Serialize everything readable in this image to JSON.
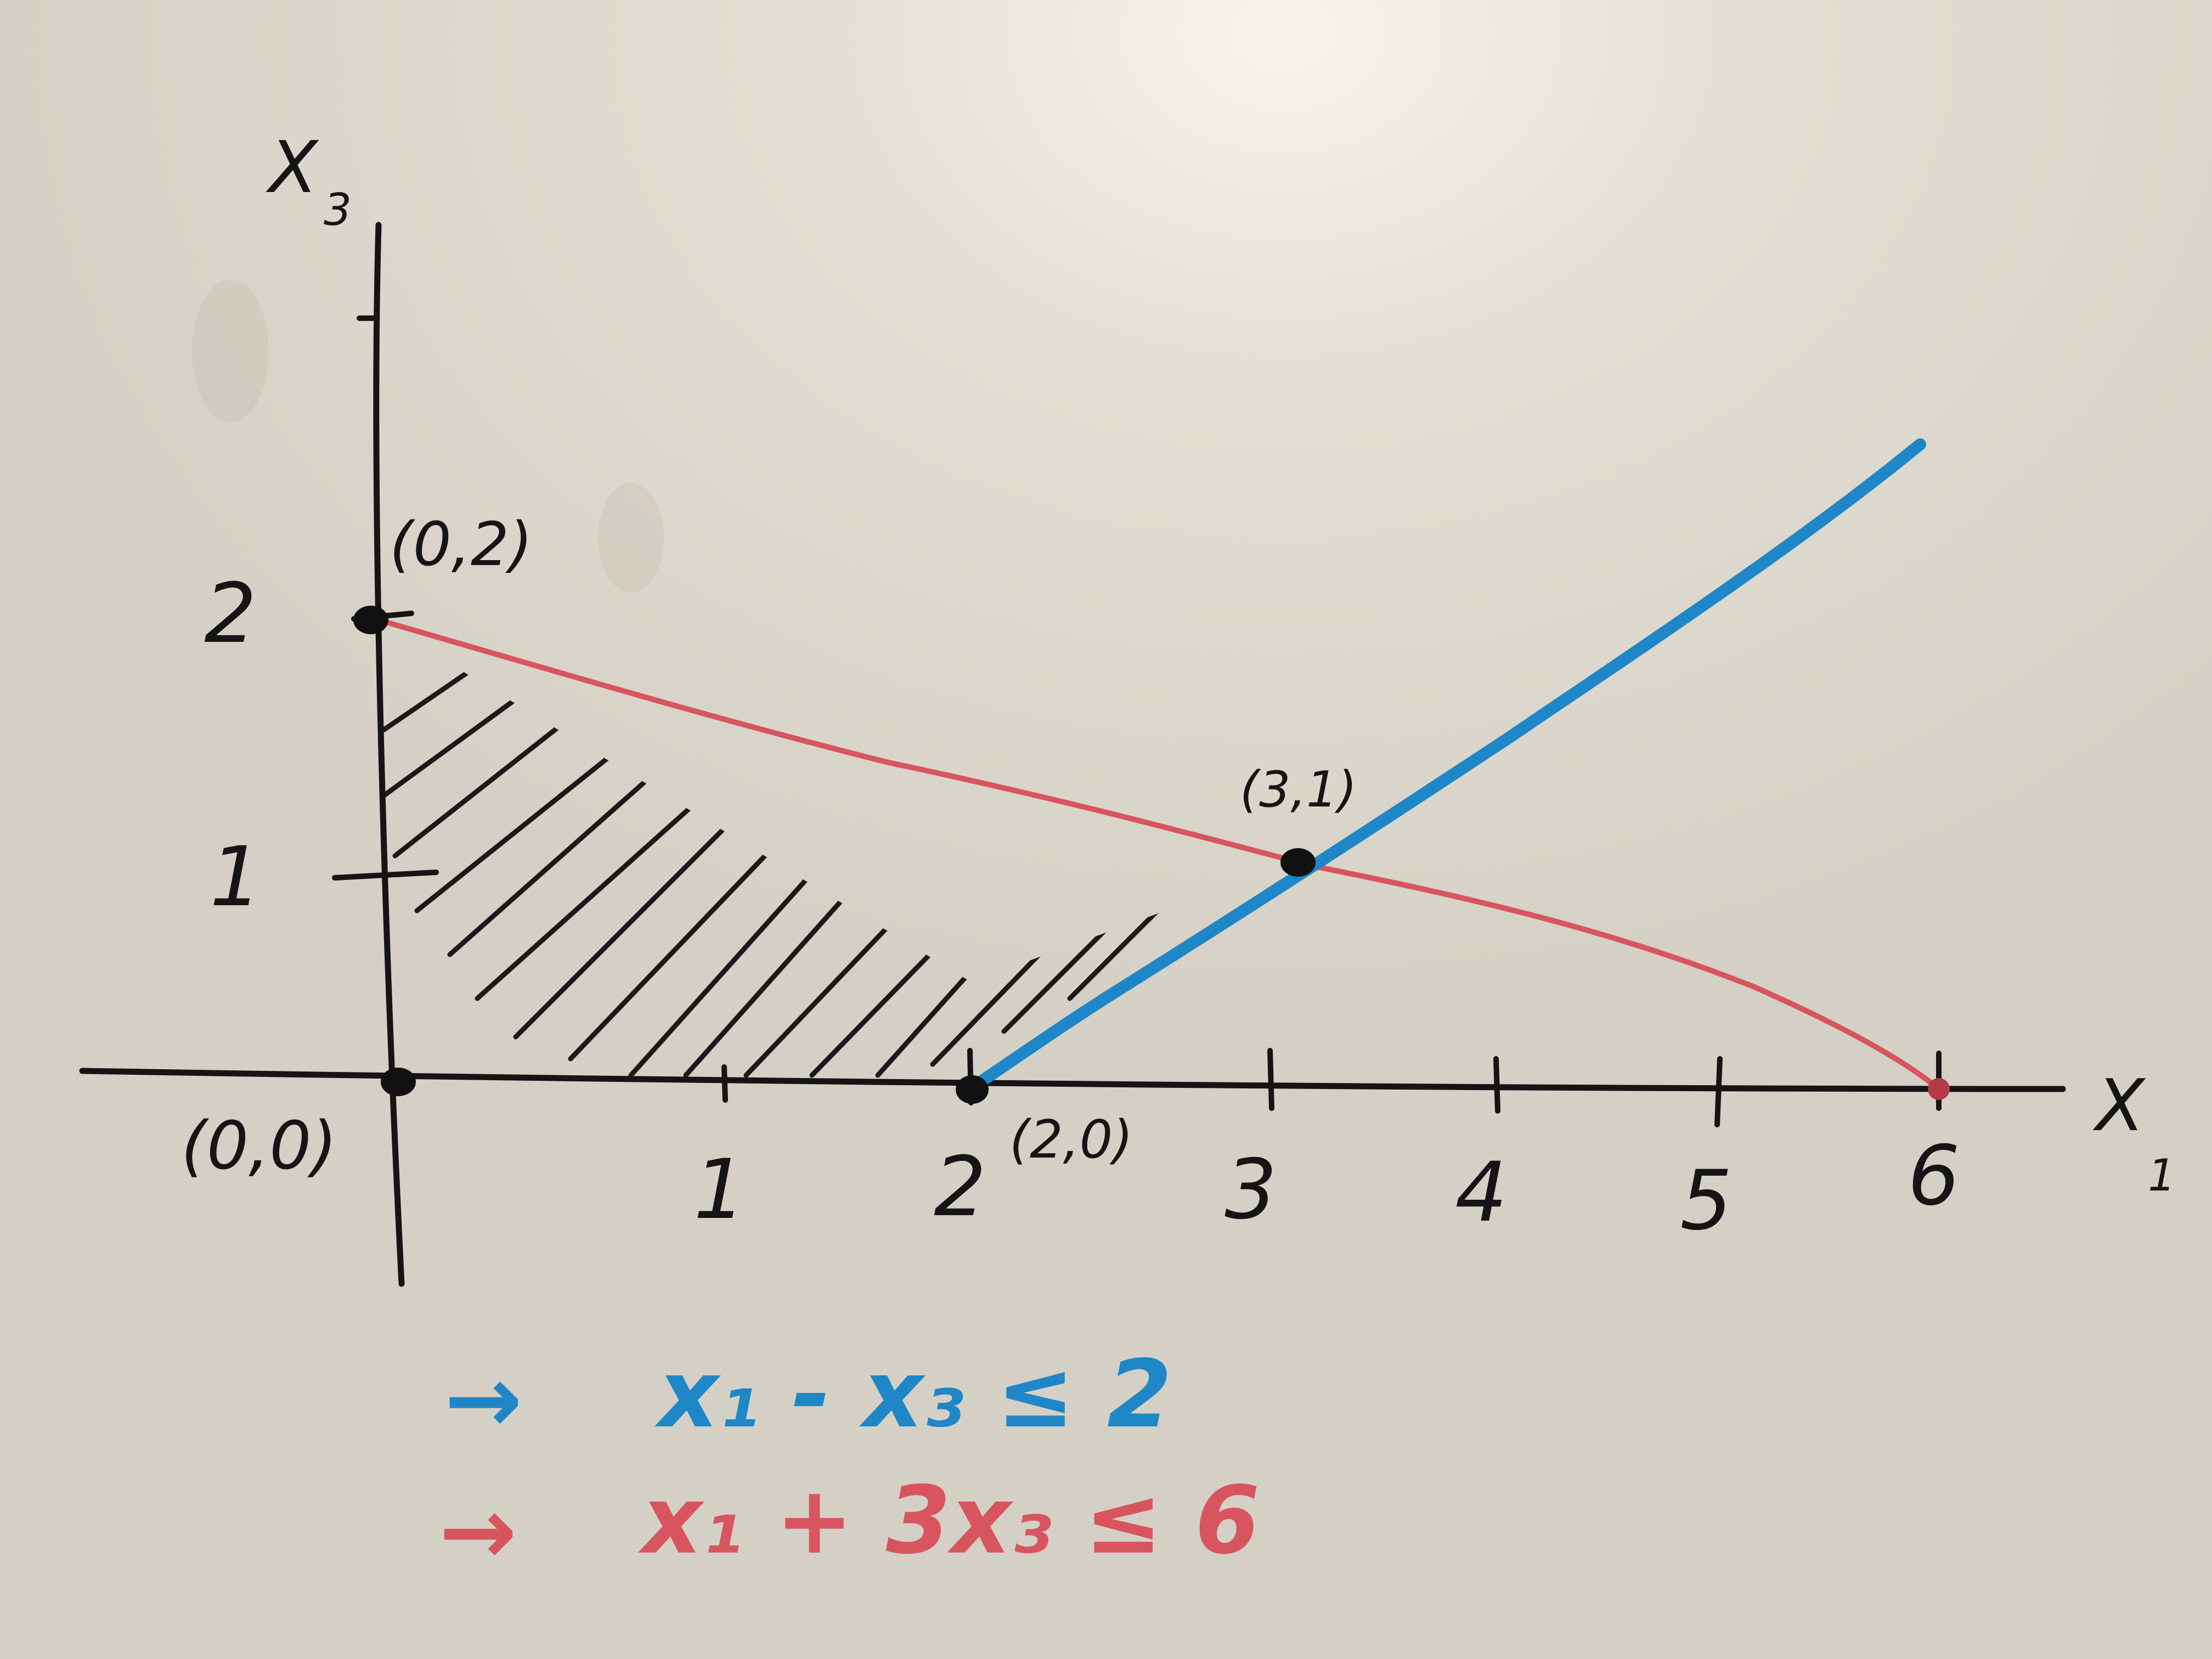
{
  "axes": {
    "x_label": "X",
    "x_sub": "1",
    "y_label": "X",
    "y_sub": "3",
    "x_ticks": [
      "1",
      "2",
      "3",
      "4",
      "5",
      "6"
    ],
    "y_ticks": [
      "1",
      "2"
    ]
  },
  "points": {
    "origin": "(0,0)",
    "p02": "(0,2)",
    "p20": "(2,0)",
    "p31": "(3,1)"
  },
  "constraints": {
    "blue": {
      "color": "#1f87c7",
      "arrow": "→",
      "text": "x₁ - x₃ ≤ 2"
    },
    "red": {
      "color": "#d8555f",
      "arrow": "→",
      "text": "x₁ + 3x₃ ≤ 6"
    }
  },
  "colors": {
    "marker": "#111111",
    "board": "#d9d5cb"
  }
}
